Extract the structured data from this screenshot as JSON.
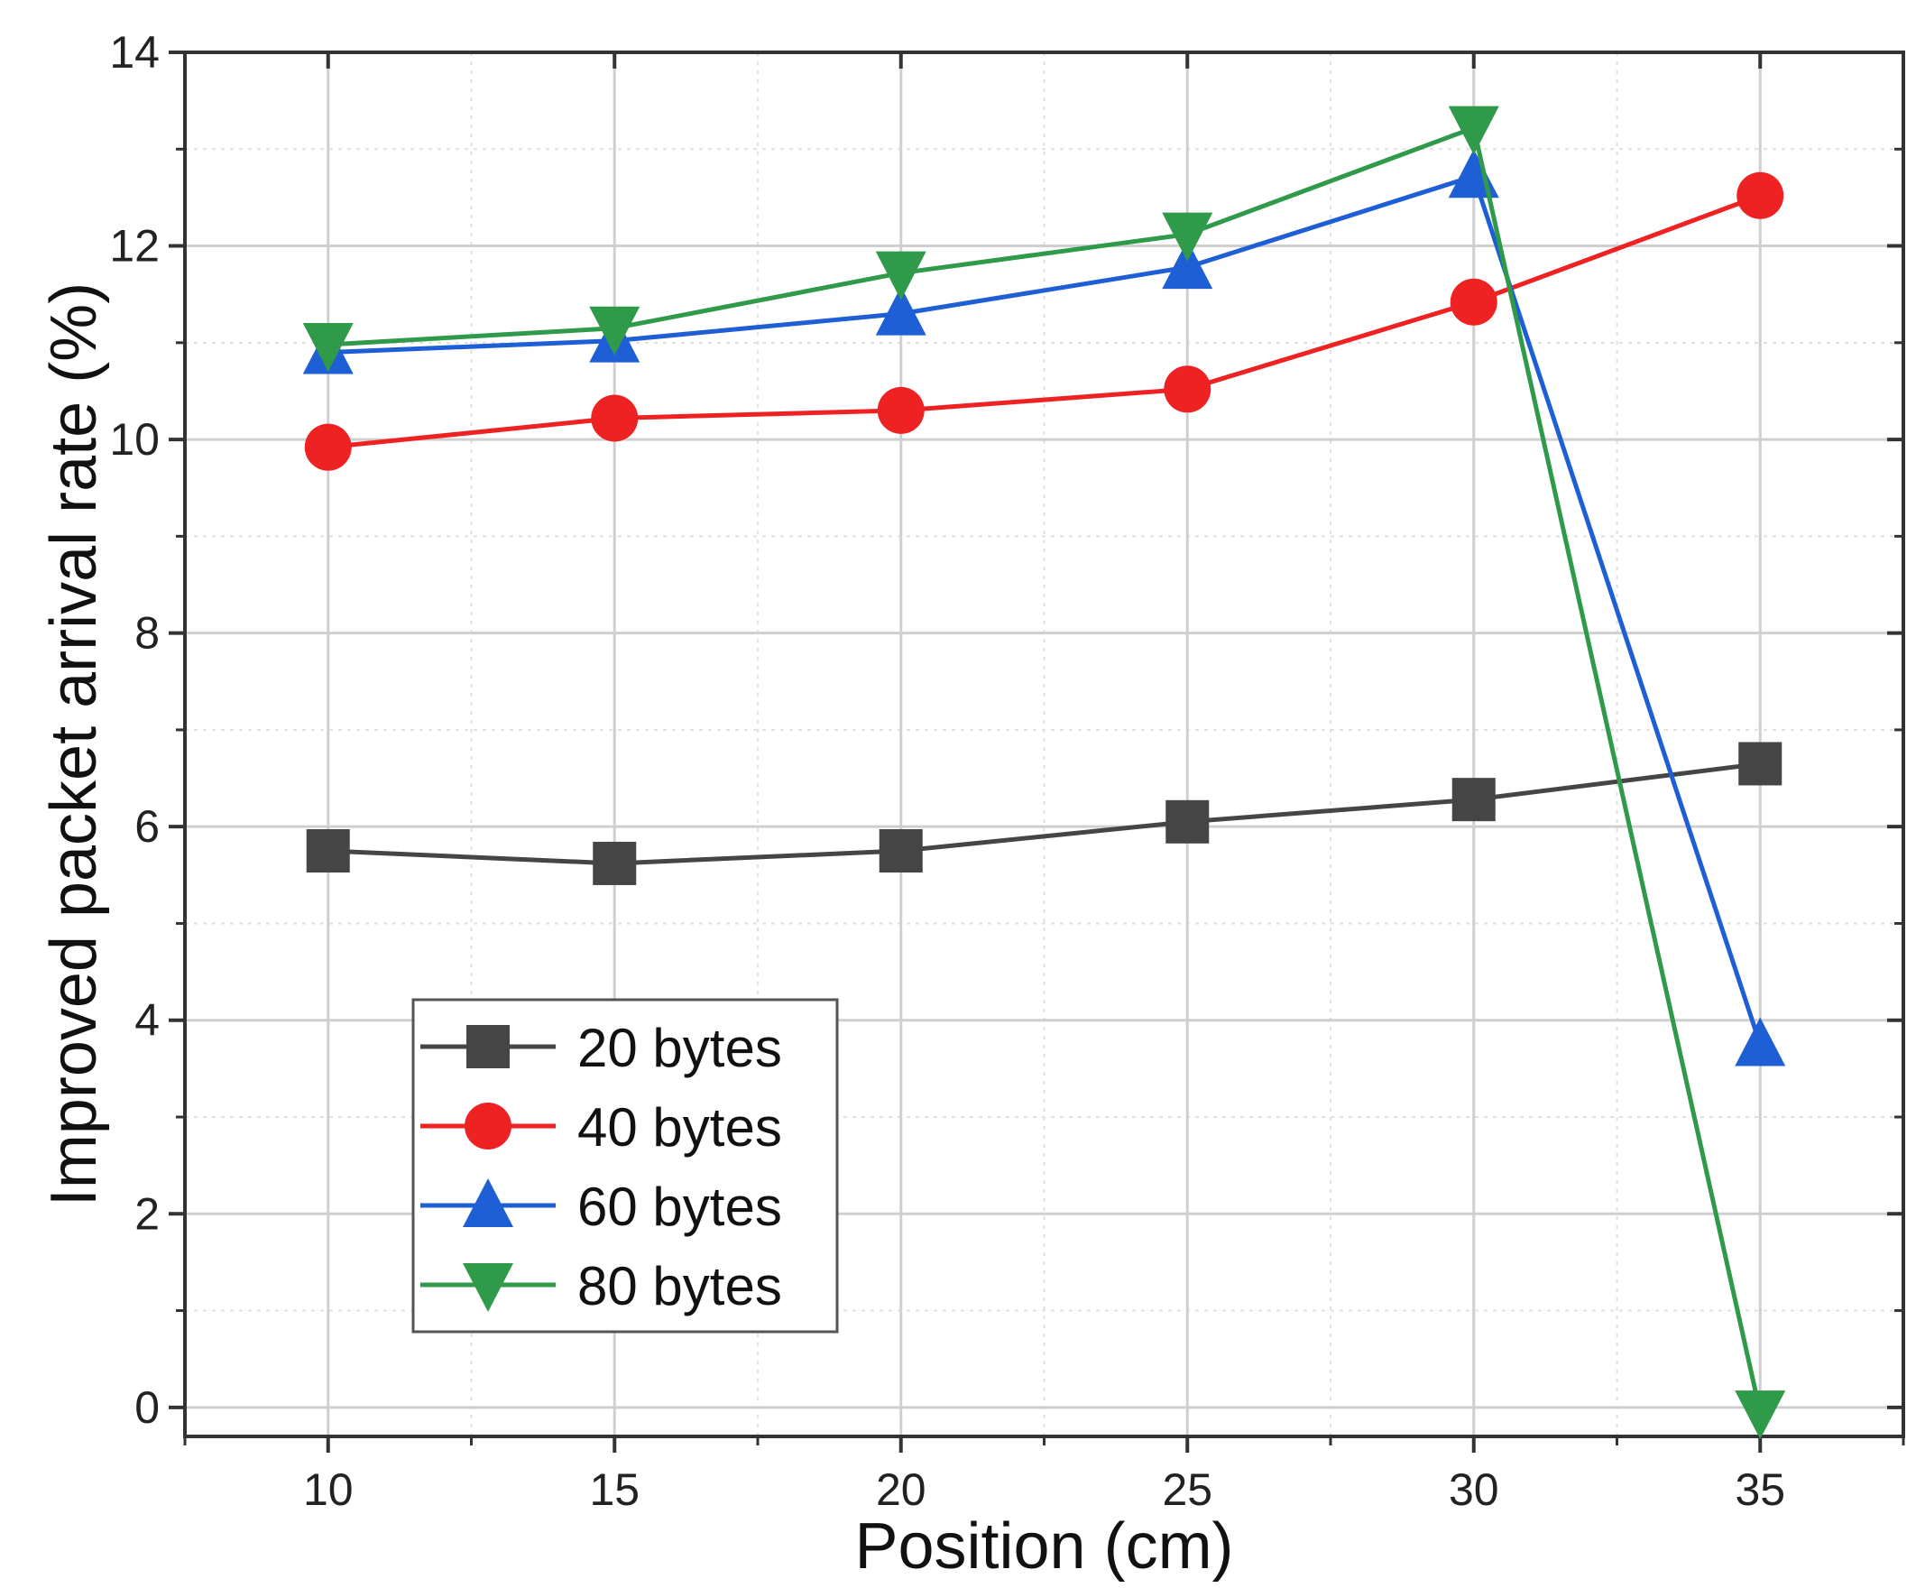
{
  "chart_data": {
    "type": "line",
    "title": "",
    "xlabel": "Position (cm)",
    "ylabel": "Improved packet arrival rate (%)",
    "x": [
      10,
      15,
      20,
      25,
      30,
      35
    ],
    "xticks": [
      "10",
      "15",
      "20",
      "25",
      "30",
      "35"
    ],
    "yticks": [
      "0",
      "2",
      "4",
      "6",
      "8",
      "10",
      "12",
      "14"
    ],
    "xlim": [
      7.5,
      37.5
    ],
    "ylim": [
      -0.3,
      14
    ],
    "grid": true,
    "legend_position": "bottom-left",
    "series": [
      {
        "name": "20 bytes",
        "color": "#454545",
        "marker": "square",
        "values": [
          5.75,
          5.62,
          5.75,
          6.05,
          6.28,
          6.65
        ]
      },
      {
        "name": "40 bytes",
        "color": "#ee2222",
        "marker": "circle",
        "values": [
          9.92,
          10.22,
          10.3,
          10.52,
          11.42,
          12.52
        ]
      },
      {
        "name": "60 bytes",
        "color": "#1f5fd6",
        "marker": "triangle-up",
        "values": [
          10.9,
          11.02,
          11.3,
          11.78,
          12.72,
          3.75
        ]
      },
      {
        "name": "80 bytes",
        "color": "#2e9a4a",
        "marker": "triangle-down",
        "values": [
          10.98,
          11.15,
          11.72,
          12.12,
          13.22,
          -0.05
        ]
      }
    ]
  }
}
